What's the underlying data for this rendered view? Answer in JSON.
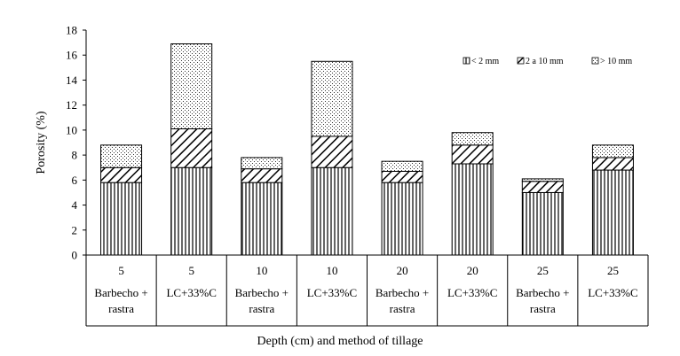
{
  "chart_data": {
    "type": "bar",
    "stacked": true,
    "title": "",
    "xlabel": "Depth (cm) and method of tillage",
    "ylabel": "Porosity (%)",
    "ylim": [
      0,
      18
    ],
    "yticks": [
      0,
      2,
      4,
      6,
      8,
      10,
      12,
      14,
      16,
      18
    ],
    "grid": false,
    "legend_position": "top-right",
    "categories": [
      {
        "depth": "5",
        "method": [
          "Barbecho +",
          "rastra"
        ]
      },
      {
        "depth": "5",
        "method": [
          "LC+33%C"
        ]
      },
      {
        "depth": "10",
        "method": [
          "Barbecho +",
          "rastra"
        ]
      },
      {
        "depth": "10",
        "method": [
          "LC+33%C"
        ]
      },
      {
        "depth": "20",
        "method": [
          "Barbecho +",
          "rastra"
        ]
      },
      {
        "depth": "20",
        "method": [
          "LC+33%C"
        ]
      },
      {
        "depth": "25",
        "method": [
          "Barbecho +",
          "rastra"
        ]
      },
      {
        "depth": "25",
        "method": [
          "LC+33%C"
        ]
      }
    ],
    "series": [
      {
        "name": "< 2 mm",
        "pattern": "vertical-lines",
        "values": [
          5.8,
          7.0,
          5.8,
          7.0,
          5.8,
          7.3,
          5.0,
          6.8
        ]
      },
      {
        "name": "2 a 10  mm",
        "pattern": "diagonal-lines",
        "values": [
          1.2,
          3.1,
          1.1,
          2.5,
          0.9,
          1.5,
          0.9,
          1.0
        ]
      },
      {
        "name": "> 10 mm",
        "pattern": "dots",
        "values": [
          1.8,
          6.8,
          0.9,
          6.0,
          0.8,
          1.0,
          0.2,
          1.0
        ]
      }
    ]
  }
}
